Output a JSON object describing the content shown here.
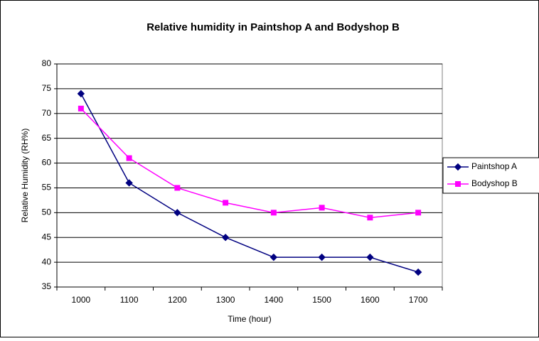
{
  "chart_data": {
    "type": "line",
    "title": "Relative humidity in Paintshop A and Bodyshop B",
    "x_label": "Time (hour)",
    "y_label": "Relative Humidity (RH%)",
    "categories": [
      "1000",
      "1100",
      "1200",
      "1300",
      "1400",
      "1500",
      "1600",
      "1700"
    ],
    "series": [
      {
        "name": "Paintshop A",
        "color": "#000080",
        "marker": "diamond",
        "values": [
          74,
          56,
          50,
          45,
          41,
          41,
          41,
          38
        ]
      },
      {
        "name": "Bodyshop B",
        "color": "#ff00ff",
        "marker": "square",
        "values": [
          71,
          61,
          55,
          52,
          50,
          51,
          49,
          50
        ]
      }
    ],
    "ylim": [
      35,
      80
    ],
    "yticks": [
      35,
      40,
      45,
      50,
      55,
      60,
      65,
      70,
      75,
      80
    ],
    "grid": true,
    "legend": "right"
  }
}
